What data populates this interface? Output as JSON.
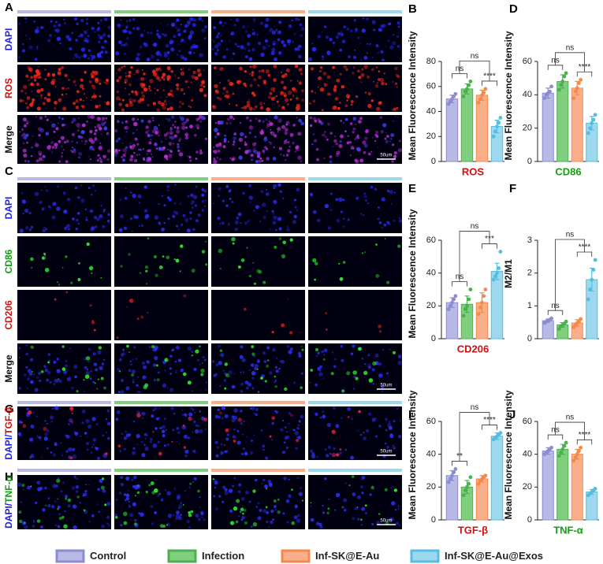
{
  "figure": {
    "image_panels": [
      {
        "label": "A",
        "rows": [
          [
            {
              "text": "DAPI",
              "color": "#2020e0"
            }
          ],
          [
            {
              "text": "ROS",
              "color": "#d01010"
            }
          ],
          [
            {
              "text": "Merge",
              "color": "#111111"
            }
          ]
        ],
        "scale_bar": "50um"
      },
      {
        "label": "C",
        "rows": [
          [
            {
              "text": "DAPI",
              "color": "#2020e0"
            }
          ],
          [
            {
              "text": "CD86",
              "color": "#10a010"
            }
          ],
          [
            {
              "text": "CD206",
              "color": "#d01010"
            }
          ],
          [
            {
              "text": "Merge",
              "color": "#111111"
            }
          ]
        ],
        "scale_bar": "50um"
      },
      {
        "label": "G",
        "rows": [
          [
            {
              "text": "DAPI/",
              "color": "#2020e0"
            },
            {
              "text": "TGF-β",
              "color": "#d01010"
            }
          ]
        ],
        "scale_bar": "50um"
      },
      {
        "label": "H",
        "rows": [
          [
            {
              "text": "DAPI/",
              "color": "#2020e0"
            },
            {
              "text": "TNF-α",
              "color": "#10a010"
            }
          ]
        ],
        "scale_bar": "50um"
      }
    ],
    "legend": [
      {
        "name": "Control",
        "color": "#8c8cd0",
        "fill": "#b9b9e6"
      },
      {
        "name": "Infection",
        "color": "#4cb050",
        "fill": "#7fcf7f"
      },
      {
        "name": "Inf-SK@E-Au",
        "color": "#f5894a",
        "fill": "#f9b08a"
      },
      {
        "name": "Inf-SK@E-Au@Exos",
        "color": "#55bde0",
        "fill": "#9cd9ef"
      }
    ]
  },
  "chart_data": [
    {
      "type": "bar",
      "label": "B",
      "ylabel": "Mean Fluorescence Intensity",
      "xlabel": "ROS",
      "xlabel_color": "#d01010",
      "values": [
        50,
        58,
        53,
        28
      ],
      "errors": [
        3,
        4,
        4,
        5
      ],
      "points": [
        [
          46,
          48,
          50,
          52,
          54
        ],
        [
          52,
          56,
          58,
          61,
          64
        ],
        [
          47,
          50,
          53,
          55,
          58
        ],
        [
          20,
          24,
          28,
          31,
          35
        ]
      ],
      "significance": [
        "ns",
        "****",
        "ns"
      ],
      "ylim": [
        0,
        80
      ],
      "yticks": [
        0,
        20,
        40,
        60,
        80
      ]
    },
    {
      "type": "bar",
      "label": "D",
      "ylabel": "Mean Fluorescence Intensity",
      "xlabel": "CD86",
      "xlabel_color": "#10a010",
      "values": [
        41,
        48,
        44,
        23
      ],
      "errors": [
        3,
        4,
        4,
        4
      ],
      "points": [
        [
          38,
          40,
          41,
          42,
          45
        ],
        [
          43,
          46,
          48,
          51,
          53
        ],
        [
          38,
          42,
          44,
          47,
          49
        ],
        [
          17,
          20,
          23,
          25,
          28
        ]
      ],
      "significance": [
        "ns",
        "****",
        "ns"
      ],
      "ylim": [
        0,
        60
      ],
      "yticks": [
        0,
        20,
        40,
        60
      ]
    },
    {
      "type": "bar",
      "label": "E",
      "ylabel": "Mean Fluorescence Intensity",
      "xlabel": "CD206",
      "xlabel_color": "#d01010",
      "values": [
        22,
        21,
        22,
        41
      ],
      "errors": [
        3,
        5,
        6,
        5
      ],
      "points": [
        [
          18,
          20,
          22,
          24,
          26
        ],
        [
          14,
          18,
          20,
          24,
          30
        ],
        [
          15,
          19,
          22,
          26,
          30
        ],
        [
          36,
          38,
          40,
          43,
          53
        ]
      ],
      "significance": [
        "ns",
        "***",
        "ns"
      ],
      "ylim": [
        0,
        60
      ],
      "yticks": [
        0,
        20,
        40,
        60
      ]
    },
    {
      "type": "bar",
      "label": "F",
      "ylabel": "M2/M1",
      "values": [
        0.55,
        0.42,
        0.48,
        1.8
      ],
      "errors": [
        0.05,
        0.07,
        0.1,
        0.35
      ],
      "points": [
        [
          0.48,
          0.52,
          0.55,
          0.58,
          0.62
        ],
        [
          0.3,
          0.38,
          0.42,
          0.46,
          0.52
        ],
        [
          0.35,
          0.42,
          0.48,
          0.52,
          0.6
        ],
        [
          1.2,
          1.5,
          1.8,
          2.1,
          2.4
        ]
      ],
      "significance": [
        "ns",
        "****",
        "ns"
      ],
      "ylim": [
        0,
        3
      ],
      "yticks": [
        0,
        1,
        2,
        3
      ]
    },
    {
      "type": "bar",
      "label": "I",
      "ylabel": "Mean Fluorescence Intensity",
      "xlabel": "TGF-β",
      "xlabel_color": "#d01010",
      "values": [
        27,
        20,
        25,
        51
      ],
      "errors": [
        3,
        4,
        2,
        2
      ],
      "points": [
        [
          23,
          25,
          27,
          29,
          31
        ],
        [
          15,
          18,
          20,
          22,
          26
        ],
        [
          22,
          24,
          25,
          26,
          27
        ],
        [
          49,
          50,
          51,
          52,
          53
        ]
      ],
      "significance": [
        "**",
        "****",
        "ns"
      ],
      "ylim": [
        0,
        60
      ],
      "yticks": [
        0,
        20,
        40,
        60
      ]
    },
    {
      "type": "bar",
      "label": "J",
      "ylabel": "Mean Fluorescence Intensity",
      "xlabel": "TNF-α",
      "xlabel_color": "#10a010",
      "values": [
        42,
        43,
        40,
        17
      ],
      "errors": [
        2,
        3,
        3,
        1.5
      ],
      "points": [
        [
          40,
          41,
          42,
          43,
          44
        ],
        [
          39,
          41,
          43,
          45,
          47
        ],
        [
          36,
          38,
          40,
          42,
          44
        ],
        [
          15,
          16,
          17,
          18,
          19
        ]
      ],
      "significance": [
        "ns",
        "****",
        "ns"
      ],
      "ylim": [
        0,
        60
      ],
      "yticks": [
        0,
        20,
        40,
        60
      ]
    }
  ]
}
